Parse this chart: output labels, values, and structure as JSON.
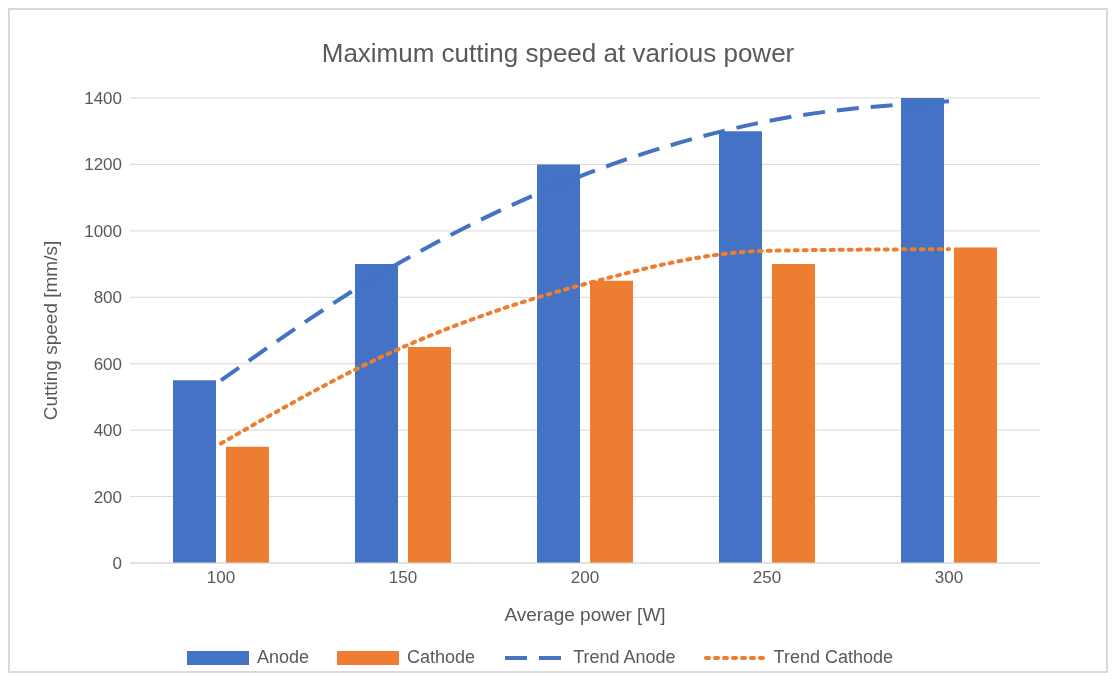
{
  "chart_data": {
    "type": "bar",
    "title": "Maximum cutting speed at various power",
    "xlabel": "Average power [W]",
    "ylabel": "Cutting speed [mm/s]",
    "categories": [
      "100",
      "150",
      "200",
      "250",
      "300"
    ],
    "series": [
      {
        "name": "Anode",
        "color": "#4472c4",
        "values": [
          550,
          900,
          1200,
          1300,
          1400
        ]
      },
      {
        "name": "Cathode",
        "color": "#ed7d31",
        "values": [
          350,
          650,
          850,
          900,
          950
        ]
      },
      {
        "name": "Trend Anode",
        "type": "line",
        "color": "#4472c4",
        "line_style": "dashed",
        "values": [
          550,
          910,
          1170,
          1330,
          1390
        ]
      },
      {
        "name": "Trend Cathode",
        "type": "line",
        "color": "#ed7d31",
        "line_style": "dotted",
        "values": [
          360,
          650,
          840,
          940,
          945
        ]
      }
    ],
    "ylim": [
      0,
      1400
    ],
    "yticks": [
      0,
      200,
      400,
      600,
      800,
      1000,
      1200,
      1400
    ],
    "grid": "y",
    "legend": "bottom",
    "marker": "none"
  }
}
